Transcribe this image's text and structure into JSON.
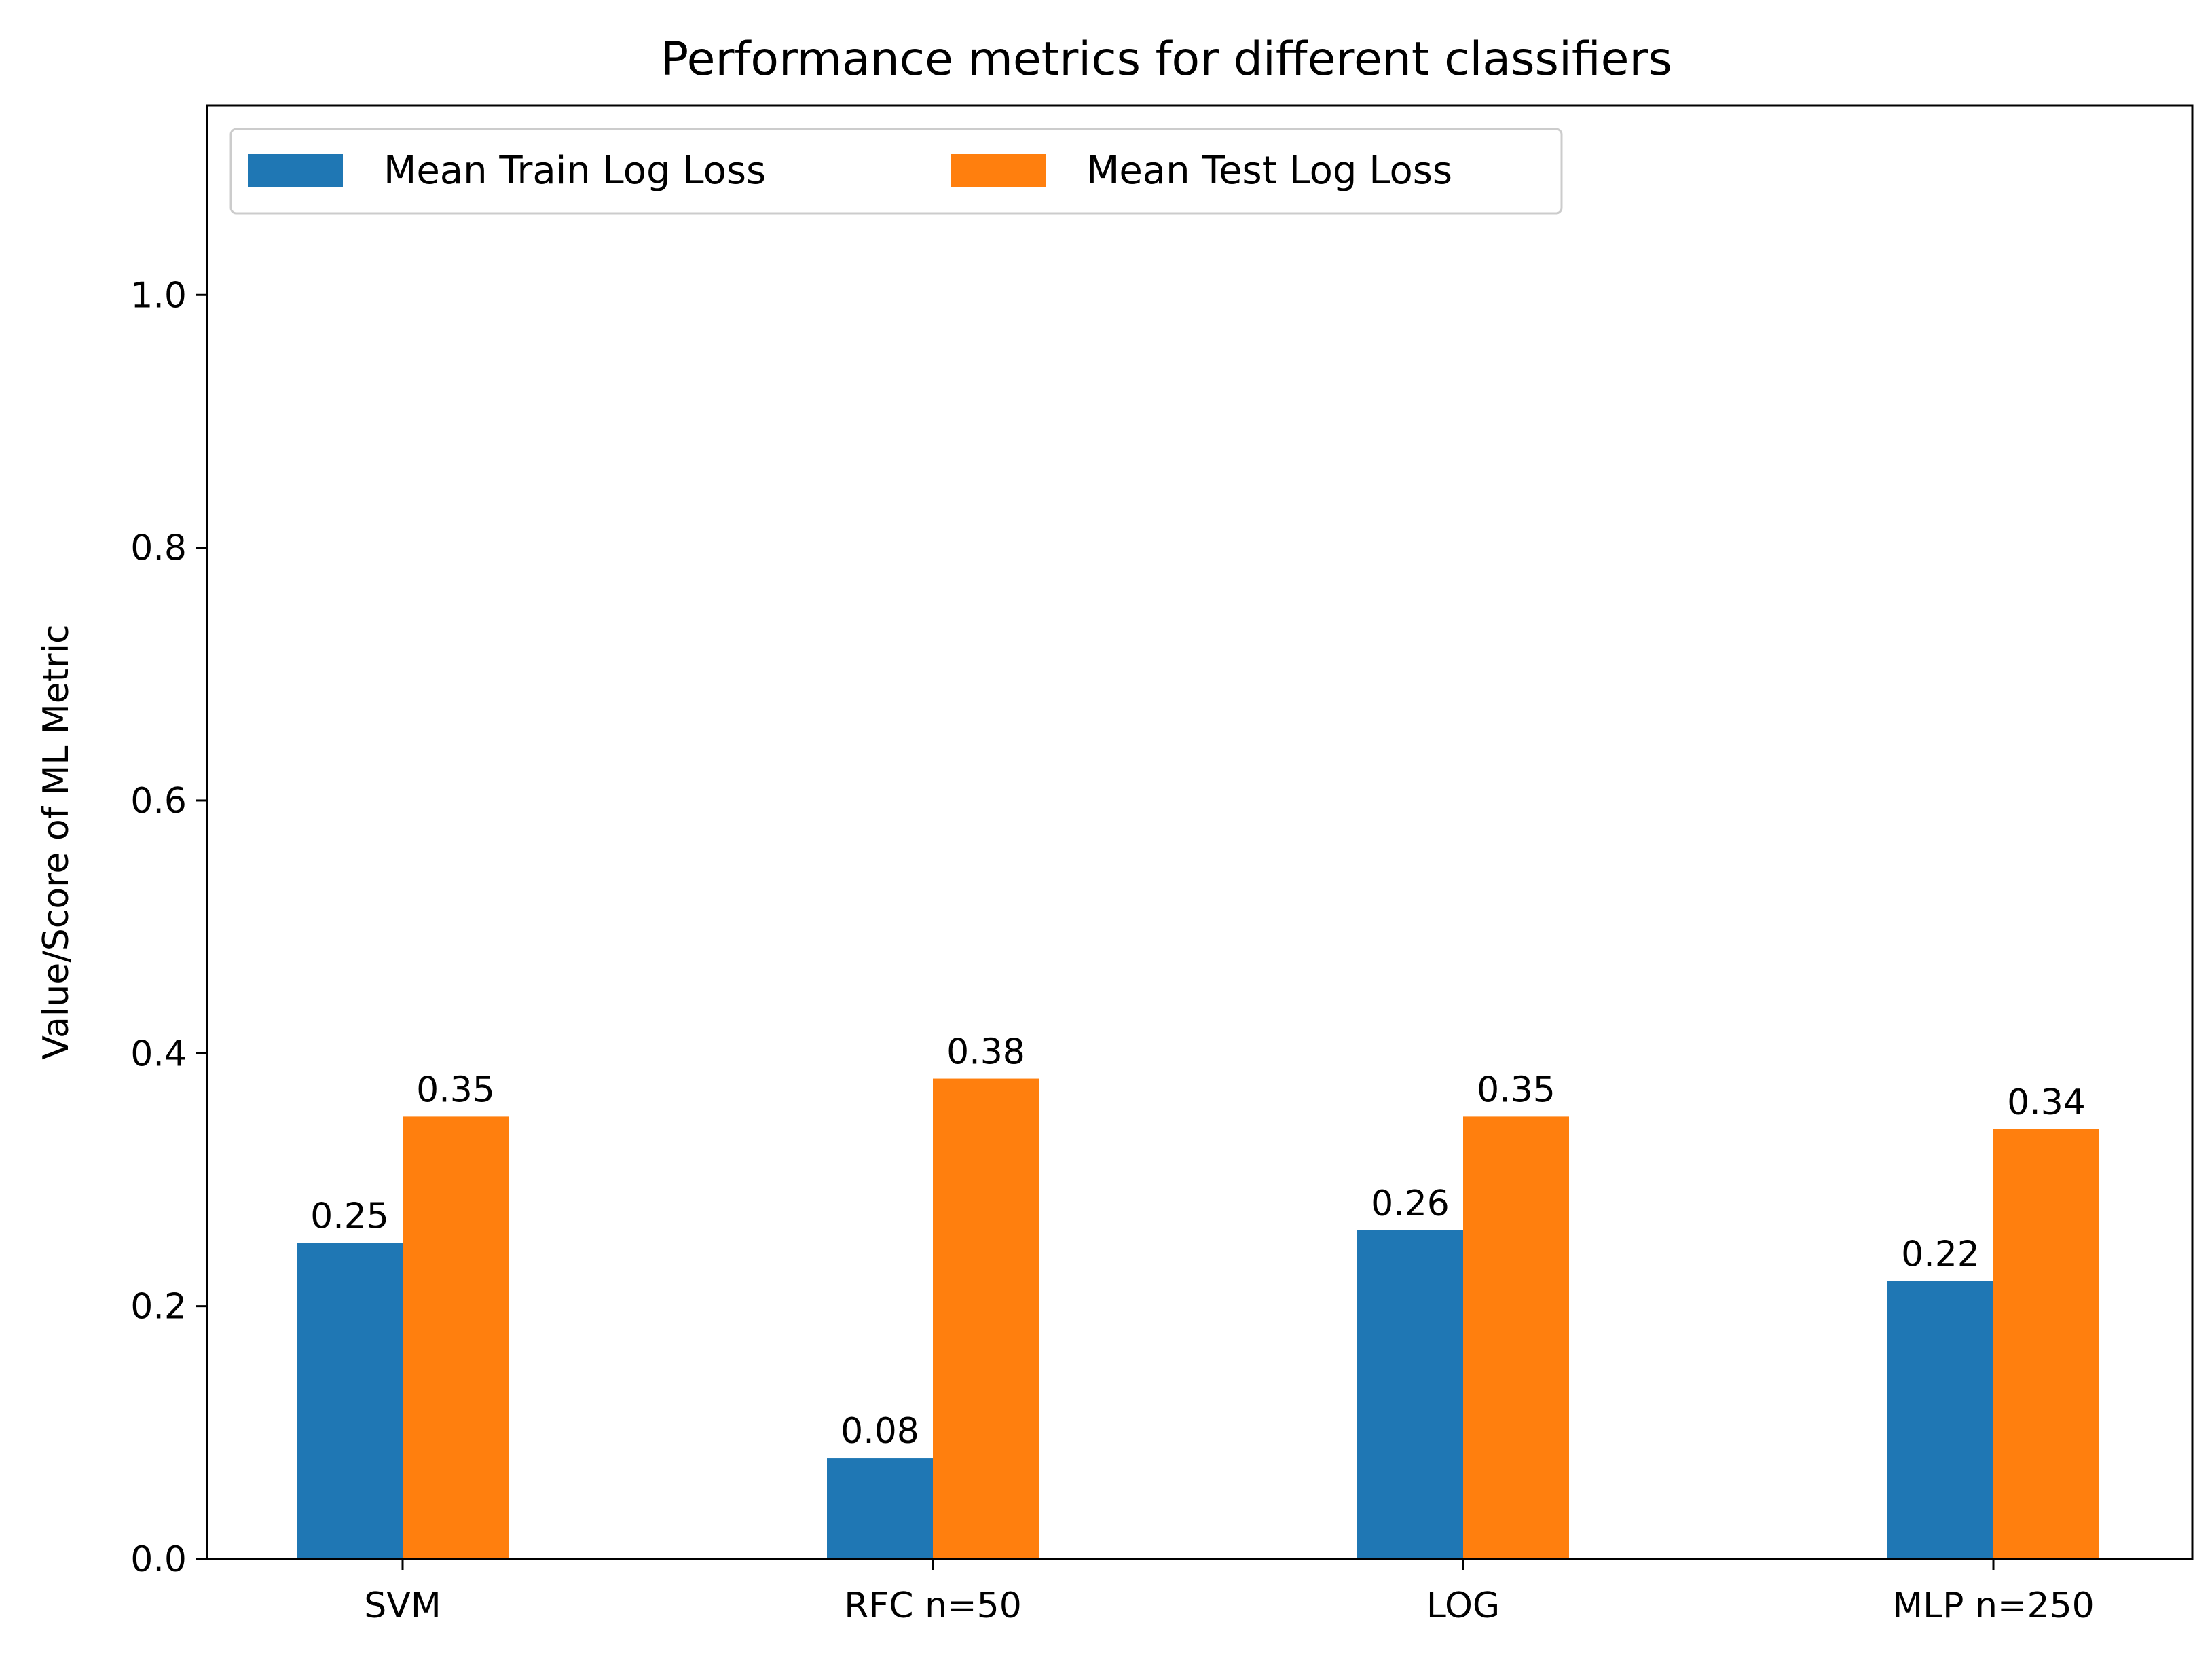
{
  "chart_data": {
    "type": "bar",
    "title": "Performance metrics for different classifiers",
    "xlabel": "",
    "ylabel": "Value/Score of ML Metric",
    "categories": [
      "SVM",
      "RFC n=50",
      "LOG",
      "MLP n=250"
    ],
    "series": [
      {
        "name": "Mean Train Log Loss",
        "color": "#1f77b4",
        "values": [
          0.25,
          0.08,
          0.26,
          0.22
        ],
        "labels": [
          "0.25",
          "0.08",
          "0.26",
          "0.22"
        ]
      },
      {
        "name": "Mean Test Log Loss",
        "color": "#ff7f0e",
        "values": [
          0.35,
          0.38,
          0.35,
          0.34
        ],
        "labels": [
          "0.35",
          "0.38",
          "0.35",
          "0.34"
        ]
      }
    ],
    "ylim": [
      0,
      1.15
    ],
    "yticks": [
      0.0,
      0.2,
      0.4,
      0.6,
      0.8,
      1.0
    ],
    "ytick_labels": [
      "0.0",
      "0.2",
      "0.4",
      "0.6",
      "0.8",
      "1.0"
    ],
    "grid": false,
    "legend_position": "top-left"
  }
}
